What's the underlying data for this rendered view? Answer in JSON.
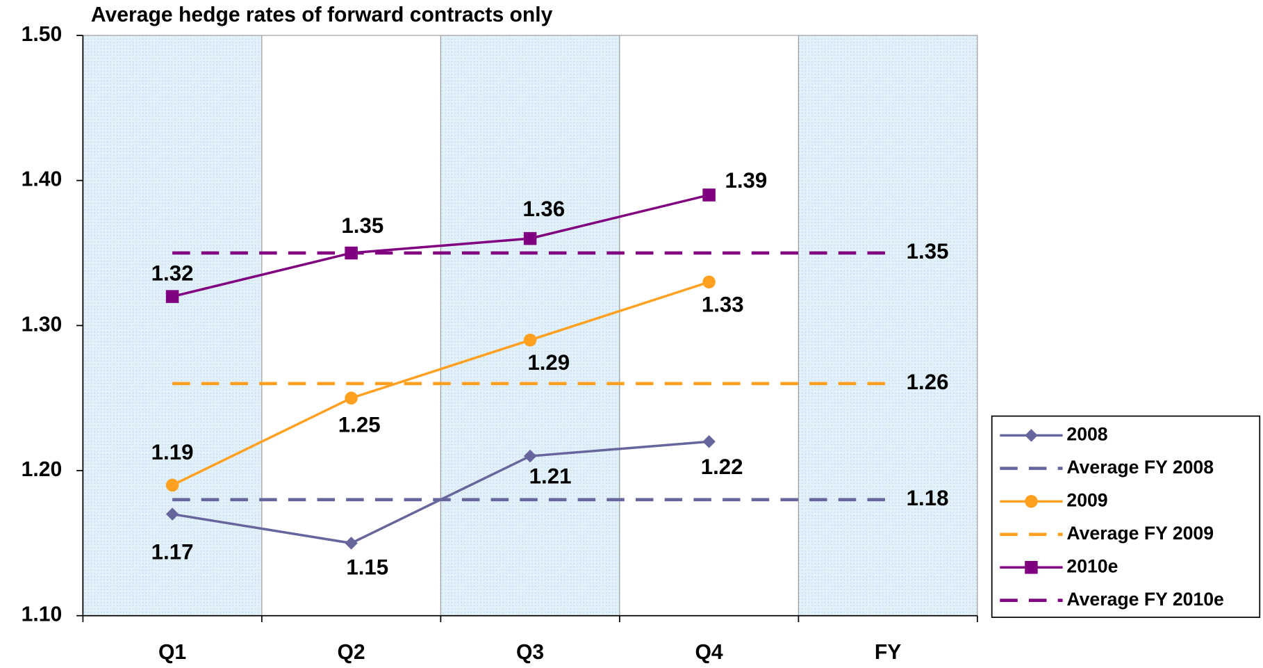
{
  "chart_data": {
    "type": "line",
    "title": "Average hedge rates of forward contracts only",
    "categories": [
      "Q1",
      "Q2",
      "Q3",
      "Q4",
      "FY"
    ],
    "ylim": [
      1.1,
      1.5
    ],
    "yticks": [
      {
        "value": 1.1,
        "label": "1.10"
      },
      {
        "value": 1.2,
        "label": "1.20"
      },
      {
        "value": 1.3,
        "label": "1.30"
      },
      {
        "value": 1.4,
        "label": "1.40"
      },
      {
        "value": 1.5,
        "label": "1.50"
      }
    ],
    "legend": "right",
    "series": [
      {
        "name": "2008",
        "color": "#66669c",
        "marker": "diamond",
        "dashed": false,
        "values": [
          1.17,
          1.15,
          1.21,
          1.22,
          null
        ]
      },
      {
        "name": "Average FY 2008",
        "color": "#66669c",
        "marker": "none",
        "dashed": true,
        "values": [
          1.18,
          1.18,
          1.18,
          1.18,
          1.18
        ]
      },
      {
        "name": "2009",
        "color": "#ffa020",
        "marker": "circle",
        "dashed": false,
        "values": [
          1.19,
          1.25,
          1.29,
          1.33,
          null
        ]
      },
      {
        "name": "Average FY 2009",
        "color": "#ffa020",
        "marker": "none",
        "dashed": true,
        "values": [
          1.26,
          1.26,
          1.26,
          1.26,
          1.26
        ]
      },
      {
        "name": "2010e",
        "color": "#800080",
        "marker": "square",
        "dashed": false,
        "values": [
          1.32,
          1.35,
          1.36,
          1.39,
          null
        ]
      },
      {
        "name": "Average FY 2010e",
        "color": "#800080",
        "marker": "none",
        "dashed": true,
        "values": [
          1.35,
          1.35,
          1.35,
          1.35,
          1.35
        ]
      }
    ]
  }
}
